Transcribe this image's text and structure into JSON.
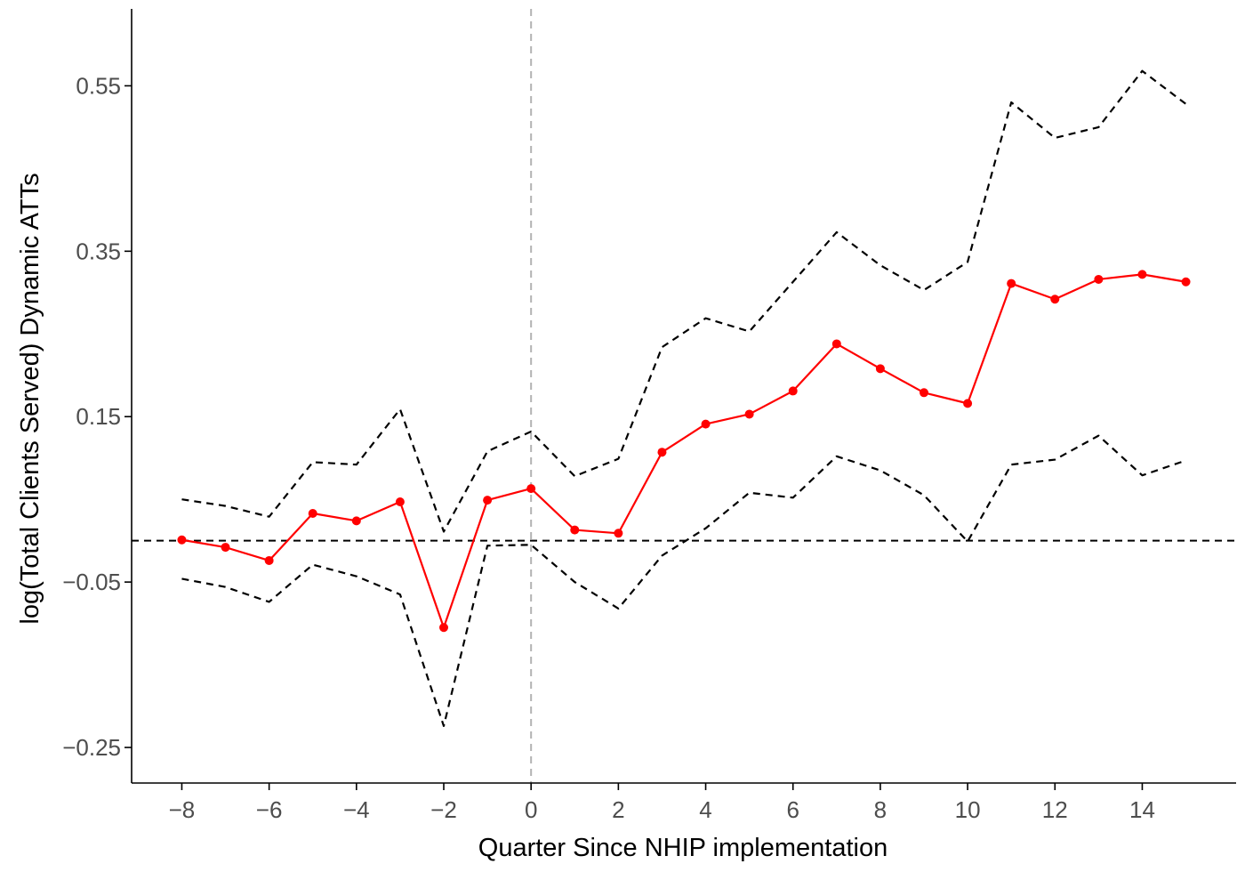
{
  "chart_data": {
    "type": "line",
    "title": "",
    "xlabel": "Quarter Since NHIP implementation",
    "ylabel": "log(Total Clients Served) Dynamic ATTs",
    "xlim": [
      -9.15,
      16.15
    ],
    "ylim": [
      -0.293,
      0.643
    ],
    "x_ticks": [
      -8,
      -6,
      -4,
      -2,
      0,
      2,
      4,
      6,
      8,
      10,
      12,
      14
    ],
    "x_tick_labels": [
      "−8",
      "−6",
      "−4",
      "−2",
      "0",
      "2",
      "4",
      "6",
      "8",
      "10",
      "12",
      "14"
    ],
    "y_ticks": [
      -0.25,
      -0.05,
      0.15,
      0.35,
      0.55
    ],
    "y_tick_labels": [
      "−0.25",
      "−0.05",
      "0.15",
      "0.35",
      "0.55"
    ],
    "grid": false,
    "reference_lines": {
      "horizontal_y": 0,
      "vertical_x": 0
    },
    "x": [
      -8,
      -7,
      -6,
      -5,
      -4,
      -3,
      -2,
      -1,
      0,
      1,
      2,
      3,
      4,
      5,
      6,
      7,
      8,
      9,
      10,
      11,
      12,
      13,
      14,
      15
    ],
    "series": [
      {
        "values": [
          0.001,
          -0.008,
          -0.024,
          0.033,
          0.024,
          0.047,
          -0.105,
          0.049,
          0.063,
          0.013,
          0.009,
          0.107,
          0.141,
          0.153,
          0.181,
          0.238,
          0.208,
          0.179,
          0.166,
          0.311,
          0.292,
          0.316,
          0.322,
          0.313
        ],
        "color": "#ff0000",
        "style": "solid",
        "markers": true
      },
      {
        "values": [
          0.05,
          0.042,
          0.029,
          0.095,
          0.092,
          0.159,
          0.011,
          0.108,
          0.132,
          0.078,
          0.099,
          0.234,
          0.269,
          0.253,
          0.313,
          0.373,
          0.333,
          0.303,
          0.337,
          0.53,
          0.487,
          0.5,
          0.568,
          0.528
        ],
        "color": "#000000",
        "style": "dashed",
        "markers": false
      },
      {
        "values": [
          -0.046,
          -0.056,
          -0.074,
          -0.029,
          -0.043,
          -0.065,
          -0.224,
          -0.006,
          -0.005,
          -0.05,
          -0.082,
          -0.018,
          0.015,
          0.058,
          0.052,
          0.102,
          0.085,
          0.055,
          -0.001,
          0.092,
          0.098,
          0.127,
          0.079,
          0.097
        ],
        "color": "#000000",
        "style": "dashed",
        "markers": false
      }
    ]
  }
}
